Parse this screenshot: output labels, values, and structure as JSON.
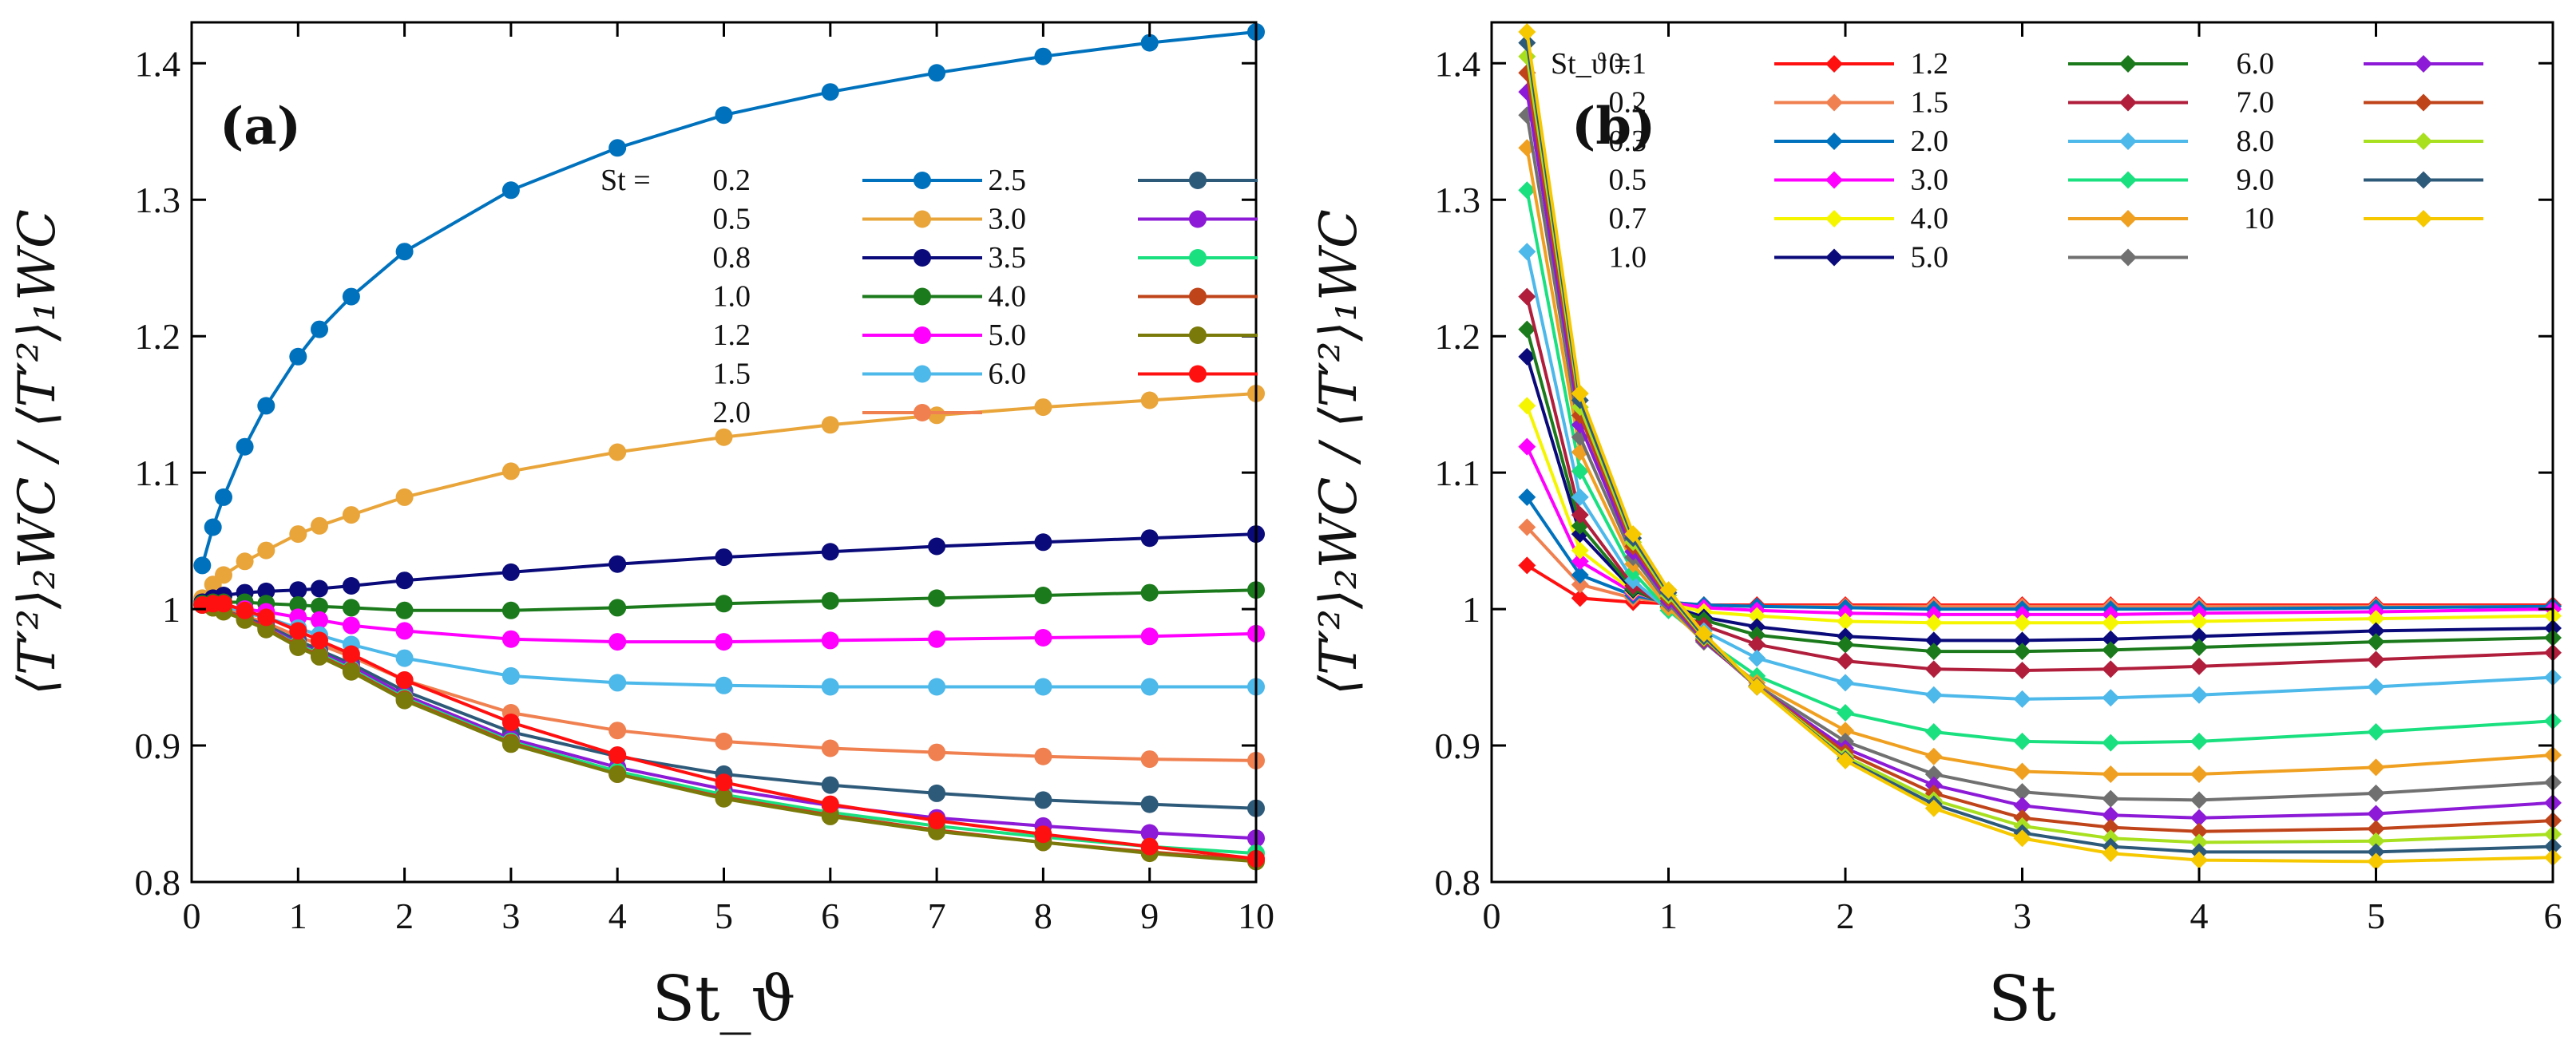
{
  "chart_data": [
    {
      "panel": "(a)",
      "type": "line",
      "marker": "circle",
      "xlabel": "St_ϑ",
      "ylabel": "⟨T′²⟩₂WC / ⟨T′²⟩₁WC",
      "xlim": [
        0,
        10
      ],
      "ylim": [
        0.8,
        1.43
      ],
      "xticks": [
        "0",
        "1",
        "2",
        "3",
        "4",
        "5",
        "6",
        "7",
        "8",
        "9",
        "10"
      ],
      "yticks": [
        "0.8",
        "0.9",
        "1",
        "1.1",
        "1.2",
        "1.3",
        "1.4"
      ],
      "legend_title": "St =",
      "x": [
        0.1,
        0.2,
        0.3,
        0.5,
        0.7,
        1.0,
        1.2,
        1.5,
        2,
        3,
        4,
        5,
        6,
        7,
        8,
        9,
        10
      ],
      "series": [
        {
          "name": "0.2",
          "color": "#0072BD",
          "values": [
            1.032,
            1.06,
            1.082,
            1.119,
            1.149,
            1.185,
            1.205,
            1.229,
            1.262,
            1.307,
            1.338,
            1.362,
            1.379,
            1.393,
            1.405,
            1.415,
            1.423
          ]
        },
        {
          "name": "0.5",
          "color": "#E9A53A",
          "values": [
            1.008,
            1.018,
            1.025,
            1.035,
            1.043,
            1.055,
            1.061,
            1.069,
            1.082,
            1.101,
            1.115,
            1.126,
            1.135,
            1.142,
            1.148,
            1.153,
            1.158
          ]
        },
        {
          "name": "0.8",
          "color": "#0A0A7A",
          "values": [
            1.005,
            1.008,
            1.01,
            1.012,
            1.013,
            1.014,
            1.015,
            1.017,
            1.021,
            1.027,
            1.033,
            1.038,
            1.042,
            1.046,
            1.049,
            1.052,
            1.055
          ]
        },
        {
          "name": "1.0",
          "color": "#1B7A1B",
          "values": [
            1.004,
            1.005,
            1.005,
            1.005,
            1.004,
            1.003,
            1.002,
            1.001,
            0.999,
            0.999,
            1.001,
            1.004,
            1.006,
            1.008,
            1.01,
            1.012,
            1.014
          ]
        },
        {
          "name": "1.2",
          "color": "#FF00FF",
          "values": [
            1.003,
            1.003,
            1.002,
            1.0,
            0.998,
            0.994,
            0.992,
            0.988,
            0.984,
            0.978,
            0.976,
            0.976,
            0.977,
            0.978,
            0.979,
            0.98,
            0.982
          ]
        },
        {
          "name": "1.5",
          "color": "#4DB8EA",
          "values": [
            1.003,
            1.002,
            1.001,
            0.997,
            0.994,
            0.986,
            0.981,
            0.974,
            0.964,
            0.951,
            0.946,
            0.944,
            0.943,
            0.943,
            0.943,
            0.943,
            0.943
          ]
        },
        {
          "name": "2.0",
          "color": "#F08050",
          "values": [
            1.003,
            1.002,
            1.0,
            0.995,
            0.99,
            0.98,
            0.974,
            0.965,
            0.948,
            0.924,
            0.911,
            0.903,
            0.898,
            0.895,
            0.892,
            0.89,
            0.889
          ]
        },
        {
          "name": "2.5",
          "color": "#2E5A7A",
          "values": [
            1.003,
            1.002,
            0.999,
            0.994,
            0.988,
            0.977,
            0.97,
            0.96,
            0.94,
            0.91,
            0.892,
            0.879,
            0.871,
            0.865,
            0.86,
            0.857,
            0.854
          ]
        },
        {
          "name": "3.0",
          "color": "#8C1AD6",
          "values": [
            1.003,
            1.002,
            0.999,
            0.993,
            0.987,
            0.975,
            0.968,
            0.958,
            0.937,
            0.905,
            0.884,
            0.868,
            0.856,
            0.847,
            0.841,
            0.836,
            0.832
          ]
        },
        {
          "name": "3.5",
          "color": "#1AE080",
          "values": [
            1.003,
            1.001,
            0.999,
            0.993,
            0.986,
            0.974,
            0.967,
            0.956,
            0.935,
            0.903,
            0.881,
            0.864,
            0.851,
            0.841,
            0.833,
            0.826,
            0.821
          ]
        },
        {
          "name": "4.0",
          "color": "#C0441A",
          "values": [
            1.003,
            1.001,
            0.999,
            0.993,
            0.986,
            0.973,
            0.966,
            0.955,
            0.934,
            0.902,
            0.879,
            0.862,
            0.849,
            0.838,
            0.829,
            0.822,
            0.816
          ]
        },
        {
          "name": "5.0",
          "color": "#7A7A0A",
          "values": [
            1.003,
            1.001,
            0.998,
            0.992,
            0.985,
            0.972,
            0.965,
            0.954,
            0.933,
            0.901,
            0.879,
            0.861,
            0.848,
            0.837,
            0.829,
            0.821,
            0.815
          ]
        },
        {
          "name": "6.0",
          "color": "#FF1010",
          "values": [
            1.003,
            1.004,
            1.004,
            0.999,
            0.994,
            0.984,
            0.977,
            0.967,
            0.948,
            0.917,
            0.893,
            0.873,
            0.857,
            0.845,
            0.835,
            0.826,
            0.817
          ]
        }
      ]
    },
    {
      "panel": "(b)",
      "type": "line",
      "marker": "diamond",
      "xlabel": "St",
      "ylabel": "⟨T′²⟩₂WC / ⟨T′²⟩₁WC",
      "xlim": [
        0,
        6
      ],
      "ylim": [
        0.8,
        1.43
      ],
      "xticks": [
        "0",
        "1",
        "2",
        "3",
        "4",
        "5",
        "6"
      ],
      "yticks": [
        "0.8",
        "0.9",
        "1",
        "1.1",
        "1.2",
        "1.3",
        "1.4"
      ],
      "legend_title": "St_ϑ =",
      "x": [
        0.2,
        0.5,
        0.8,
        1.0,
        1.2,
        1.5,
        2.0,
        2.5,
        3.0,
        3.5,
        4.0,
        5.0,
        6.0
      ],
      "series": [
        {
          "name": "0.1",
          "color": "#FF1010",
          "values": [
            1.032,
            1.008,
            1.005,
            1.004,
            1.003,
            1.003,
            1.003,
            1.003,
            1.003,
            1.003,
            1.003,
            1.003,
            1.003
          ]
        },
        {
          "name": "0.2",
          "color": "#F08050",
          "values": [
            1.06,
            1.018,
            1.008,
            1.005,
            1.003,
            1.002,
            1.002,
            1.002,
            1.002,
            1.002,
            1.002,
            1.002,
            1.002
          ]
        },
        {
          "name": "0.3",
          "color": "#0072BD",
          "values": [
            1.082,
            1.025,
            1.01,
            1.005,
            1.003,
            1.002,
            1.001,
            1.0,
            1.0,
            1.0,
            1.0,
            1.001,
            1.002
          ]
        },
        {
          "name": "0.5",
          "color": "#FF00FF",
          "values": [
            1.119,
            1.035,
            1.012,
            1.005,
            1.001,
            0.999,
            0.997,
            0.996,
            0.996,
            0.996,
            0.997,
            0.998,
            1.0
          ]
        },
        {
          "name": "0.7",
          "color": "#F5F500",
          "values": [
            1.149,
            1.043,
            1.013,
            1.004,
            0.998,
            0.995,
            0.991,
            0.99,
            0.99,
            0.99,
            0.991,
            0.993,
            0.995
          ]
        },
        {
          "name": "1.0",
          "color": "#0A0A7A",
          "values": [
            1.185,
            1.055,
            1.014,
            1.003,
            0.994,
            0.987,
            0.98,
            0.977,
            0.977,
            0.978,
            0.98,
            0.984,
            0.986
          ]
        },
        {
          "name": "1.2",
          "color": "#1B7A1B",
          "values": [
            1.205,
            1.061,
            1.015,
            1.002,
            0.992,
            0.981,
            0.974,
            0.969,
            0.969,
            0.97,
            0.972,
            0.976,
            0.979
          ]
        },
        {
          "name": "1.5",
          "color": "#B01E3C",
          "values": [
            1.229,
            1.069,
            1.017,
            1.001,
            0.988,
            0.974,
            0.962,
            0.956,
            0.955,
            0.956,
            0.958,
            0.963,
            0.968
          ]
        },
        {
          "name": "2.0",
          "color": "#4DB8EA",
          "values": [
            1.262,
            1.082,
            1.021,
            0.999,
            0.984,
            0.964,
            0.946,
            0.937,
            0.934,
            0.935,
            0.937,
            0.943,
            0.95
          ]
        },
        {
          "name": "3.0",
          "color": "#1AE080",
          "values": [
            1.307,
            1.101,
            1.027,
            0.999,
            0.978,
            0.951,
            0.924,
            0.91,
            0.903,
            0.902,
            0.903,
            0.91,
            0.918
          ]
        },
        {
          "name": "4.0",
          "color": "#F0A020",
          "values": [
            1.338,
            1.115,
            1.033,
            1.001,
            0.976,
            0.946,
            0.911,
            0.892,
            0.881,
            0.879,
            0.879,
            0.884,
            0.893
          ]
        },
        {
          "name": "5.0",
          "color": "#707070",
          "values": [
            1.362,
            1.126,
            1.038,
            1.004,
            0.976,
            0.944,
            0.903,
            0.879,
            0.866,
            0.861,
            0.86,
            0.865,
            0.873
          ]
        },
        {
          "name": "6.0",
          "color": "#8C1AD6",
          "values": [
            1.379,
            1.135,
            1.042,
            1.006,
            0.977,
            0.943,
            0.898,
            0.871,
            0.856,
            0.849,
            0.847,
            0.85,
            0.858
          ]
        },
        {
          "name": "7.0",
          "color": "#C0441A",
          "values": [
            1.393,
            1.142,
            1.046,
            1.008,
            0.978,
            0.943,
            0.895,
            0.865,
            0.847,
            0.84,
            0.837,
            0.839,
            0.845
          ]
        },
        {
          "name": "8.0",
          "color": "#A8E020",
          "values": [
            1.405,
            1.148,
            1.049,
            1.01,
            0.979,
            0.943,
            0.892,
            0.86,
            0.841,
            0.832,
            0.829,
            0.83,
            0.835
          ]
        },
        {
          "name": "9.0",
          "color": "#2E5A7A",
          "values": [
            1.415,
            1.153,
            1.052,
            1.012,
            0.98,
            0.943,
            0.89,
            0.857,
            0.836,
            0.826,
            0.822,
            0.822,
            0.826
          ]
        },
        {
          "name": "10",
          "color": "#F5C800",
          "values": [
            1.423,
            1.158,
            1.055,
            1.014,
            0.982,
            0.943,
            0.889,
            0.854,
            0.832,
            0.821,
            0.816,
            0.815,
            0.818
          ]
        }
      ]
    }
  ]
}
